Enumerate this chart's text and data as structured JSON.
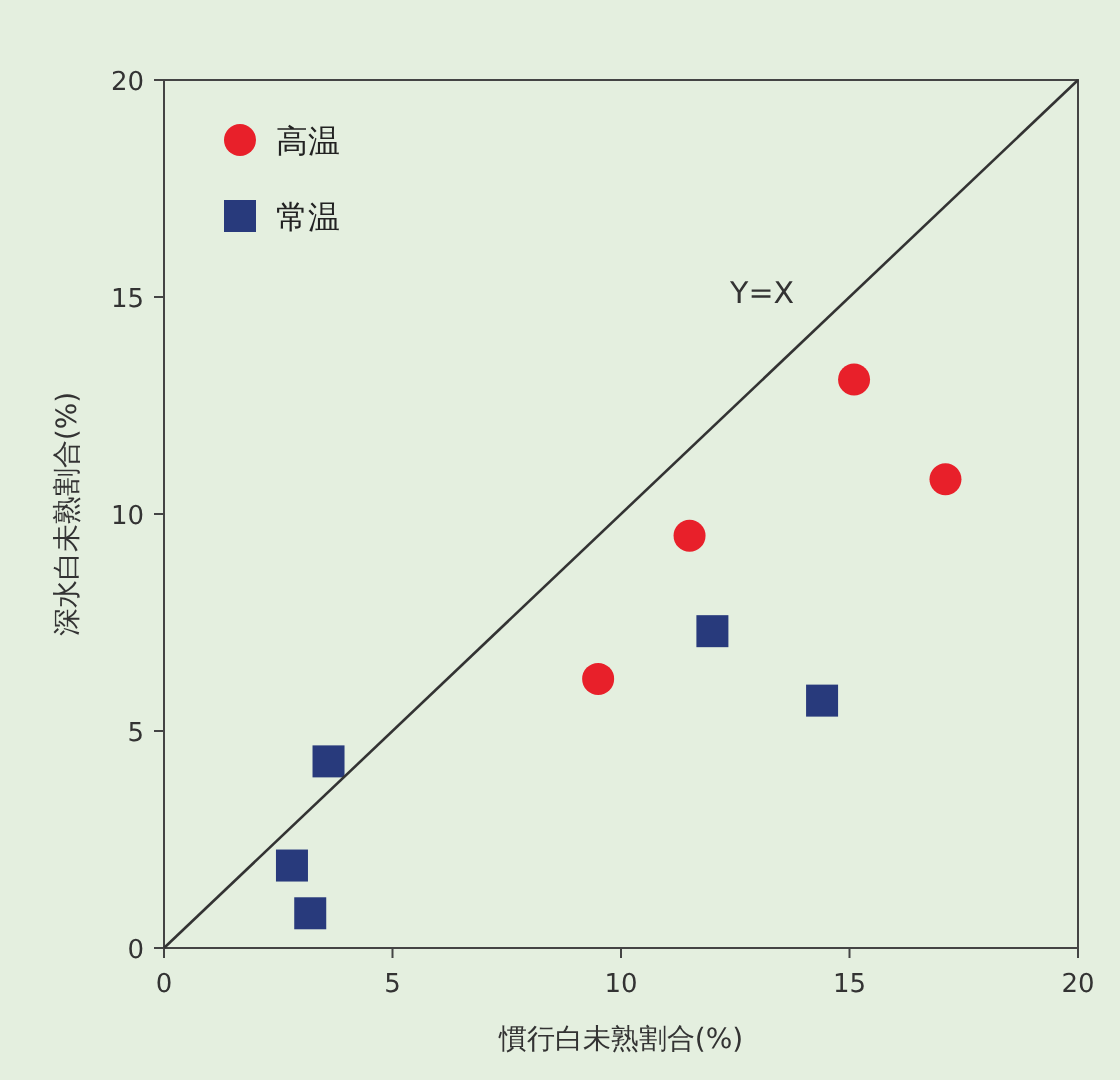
{
  "chart_data": {
    "type": "scatter",
    "xlabel": "慣行白未熟割合(%)",
    "ylabel": "深水白未熟割合(%)",
    "xlim": [
      0,
      20
    ],
    "ylim": [
      0,
      20
    ],
    "xticks": [
      0,
      5,
      10,
      15,
      20
    ],
    "yticks": [
      0,
      5,
      10,
      15,
      20
    ],
    "grid": false,
    "legend": "top left",
    "series": [
      {
        "name": "高温",
        "marker": "circle",
        "color": "#e8202a",
        "x": [
          9.5,
          11.5,
          15.1,
          17.1
        ],
        "values": [
          6.2,
          9.5,
          13.1,
          10.8
        ]
      },
      {
        "name": "常温",
        "marker": "square",
        "color": "#283a7c",
        "x": [
          12.0,
          14.4,
          3.6,
          2.8,
          3.2
        ],
        "values": [
          7.3,
          5.7,
          4.3,
          1.9,
          0.8
        ]
      },
      {
        "name": "Y=X",
        "type": "line",
        "marker": "none",
        "color": "#333333",
        "x": [
          0,
          20
        ],
        "values": [
          0,
          20
        ]
      }
    ]
  }
}
